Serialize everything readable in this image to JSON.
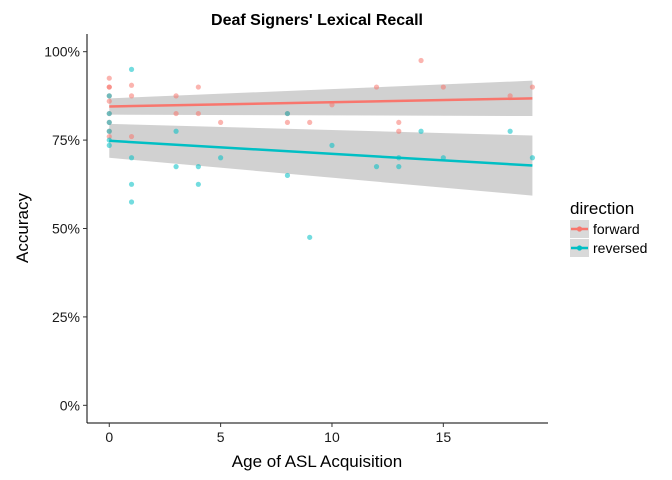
{
  "chart_data": {
    "type": "scatter",
    "title": "Deaf Signers' Lexical Recall",
    "xlabel": "Age of ASL Acquisition",
    "ylabel": "Accuracy",
    "xlim": [
      -1,
      19.7
    ],
    "ylim": [
      -0.05,
      1.05
    ],
    "x_ticks": [
      0,
      5,
      10,
      15
    ],
    "y_ticks": [
      0,
      0.25,
      0.5,
      0.75,
      1.0
    ],
    "y_tick_labels": [
      "0%",
      "25%",
      "50%",
      "75%",
      "100%"
    ],
    "grid": false,
    "legend": {
      "title": "direction",
      "position": "right"
    },
    "series": [
      {
        "name": "forward",
        "color": "#F8766D",
        "points": [
          [
            0,
            0.925
          ],
          [
            0,
            0.9
          ],
          [
            0,
            0.9
          ],
          [
            0,
            0.875
          ],
          [
            0,
            0.86
          ],
          [
            0,
            0.825
          ],
          [
            0,
            0.8
          ],
          [
            0,
            0.775
          ],
          [
            0,
            0.76
          ],
          [
            1,
            0.905
          ],
          [
            1,
            0.875
          ],
          [
            1,
            0.76
          ],
          [
            3,
            0.875
          ],
          [
            3,
            0.825
          ],
          [
            4,
            0.9
          ],
          [
            4,
            0.825
          ],
          [
            5,
            0.8
          ],
          [
            8,
            0.825
          ],
          [
            8,
            0.8
          ],
          [
            9,
            0.8
          ],
          [
            10,
            0.85
          ],
          [
            12,
            0.9
          ],
          [
            13,
            0.8
          ],
          [
            13,
            0.775
          ],
          [
            14,
            0.975
          ],
          [
            15,
            0.9
          ],
          [
            18,
            0.875
          ],
          [
            19,
            0.9
          ]
        ],
        "fit": {
          "x": [
            0,
            19
          ],
          "y": [
            0.845,
            0.868
          ],
          "ci_low": [
            0.822,
            0.818
          ],
          "ci_high": [
            0.868,
            0.918
          ]
        }
      },
      {
        "name": "reversed",
        "color": "#00BFC4",
        "points": [
          [
            0,
            0.875
          ],
          [
            0,
            0.825
          ],
          [
            0,
            0.8
          ],
          [
            0,
            0.775
          ],
          [
            0,
            0.75
          ],
          [
            0,
            0.735
          ],
          [
            1,
            0.95
          ],
          [
            1,
            0.7
          ],
          [
            1,
            0.625
          ],
          [
            1,
            0.575
          ],
          [
            3,
            0.775
          ],
          [
            3,
            0.675
          ],
          [
            4,
            0.675
          ],
          [
            4,
            0.625
          ],
          [
            5,
            0.7
          ],
          [
            8,
            0.825
          ],
          [
            8,
            0.65
          ],
          [
            9,
            0.475
          ],
          [
            10,
            0.735
          ],
          [
            12,
            0.675
          ],
          [
            13,
            0.7
          ],
          [
            13,
            0.675
          ],
          [
            14,
            0.775
          ],
          [
            15,
            0.7
          ],
          [
            18,
            0.775
          ],
          [
            19,
            0.7
          ]
        ],
        "fit": {
          "x": [
            0,
            19
          ],
          "y": [
            0.748,
            0.678
          ],
          "ci_low": [
            0.7,
            0.593
          ],
          "ci_high": [
            0.796,
            0.763
          ]
        }
      }
    ]
  }
}
